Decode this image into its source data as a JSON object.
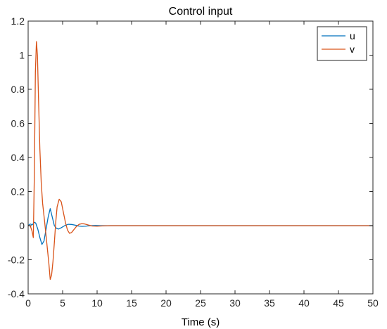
{
  "chart_data": {
    "type": "line",
    "title": "Control input",
    "xlabel": "Time (s)",
    "ylabel": "",
    "xlim": [
      0,
      50
    ],
    "ylim": [
      -0.4,
      1.2
    ],
    "xticks": [
      0,
      5,
      10,
      15,
      20,
      25,
      30,
      35,
      40,
      45,
      50
    ],
    "yticks": [
      -0.4,
      -0.2,
      0,
      0.2,
      0.4,
      0.6,
      0.8,
      1,
      1.2
    ],
    "grid": false,
    "legend_position": "top-right",
    "series": [
      {
        "name": "u",
        "color": "#0072BD",
        "x": [
          0,
          0.3,
          0.6,
          0.9,
          1.1,
          1.4,
          1.7,
          2.0,
          2.3,
          2.6,
          2.9,
          3.2,
          3.5,
          3.8,
          4.1,
          4.4,
          4.8,
          5.3,
          5.8,
          6.3,
          6.8,
          7.3,
          7.8,
          8.3,
          9.0,
          9.8,
          10.5,
          11.5,
          13,
          15,
          50
        ],
        "y": [
          0,
          0.01,
          0.005,
          0.02,
          0.015,
          -0.02,
          -0.07,
          -0.11,
          -0.09,
          -0.02,
          0.05,
          0.1,
          0.05,
          0.0,
          -0.015,
          -0.02,
          -0.012,
          0.0,
          0.008,
          0.007,
          0.003,
          -0.002,
          -0.004,
          -0.003,
          0.0,
          0.001,
          0.0,
          0.0,
          0.0,
          0.0,
          0.0
        ]
      },
      {
        "name": "v",
        "color": "#D95319",
        "x": [
          0,
          0.3,
          0.55,
          0.75,
          0.9,
          1.05,
          1.2,
          1.35,
          1.5,
          1.7,
          1.9,
          2.1,
          2.4,
          2.7,
          3.0,
          3.2,
          3.4,
          3.6,
          3.8,
          4.0,
          4.2,
          4.5,
          4.8,
          5.1,
          5.4,
          5.7,
          6.0,
          6.3,
          6.6,
          7.0,
          7.4,
          7.8,
          8.2,
          8.7,
          9.3,
          10,
          11,
          12,
          14,
          50
        ],
        "y": [
          0,
          0.0,
          -0.03,
          -0.07,
          0.3,
          0.9,
          1.08,
          1.0,
          0.75,
          0.45,
          0.25,
          0.13,
          0.02,
          -0.1,
          -0.22,
          -0.315,
          -0.29,
          -0.21,
          -0.1,
          0.02,
          0.11,
          0.155,
          0.14,
          0.08,
          0.02,
          -0.025,
          -0.045,
          -0.04,
          -0.025,
          -0.005,
          0.008,
          0.012,
          0.01,
          0.004,
          -0.002,
          -0.003,
          -0.001,
          0.0,
          0.0,
          0.0
        ]
      }
    ]
  }
}
